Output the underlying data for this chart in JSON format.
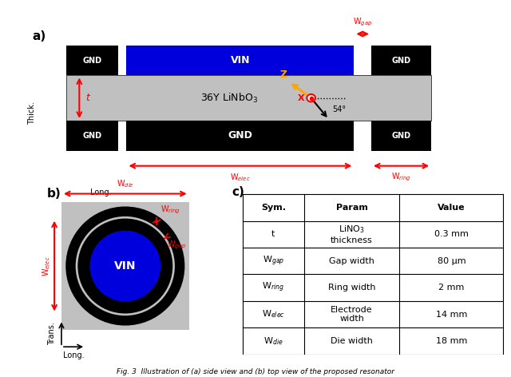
{
  "colors": {
    "black": "#000000",
    "white": "#ffffff",
    "blue": "#0000dd",
    "gray": "#c0c0c0",
    "red": "#ff0000",
    "orange": "#ffa500"
  },
  "table_headers": [
    "Sym.",
    "Param",
    "Value"
  ],
  "table_rows": [
    [
      "t",
      "LiNO$_3$\nthickness",
      "0.3 mm"
    ],
    [
      "W$_{gap}$",
      "Gap width",
      "80 μm"
    ],
    [
      "W$_{ring}$",
      "Ring width",
      "2 mm"
    ],
    [
      "W$_{elec}$",
      "Electrode\nwidth",
      "14 mm"
    ],
    [
      "W$_{die}$",
      "Die width",
      "18 mm"
    ]
  ],
  "caption": "Fig. 3  Illustration of (a) side view and (b) top view of the proposed resonator"
}
